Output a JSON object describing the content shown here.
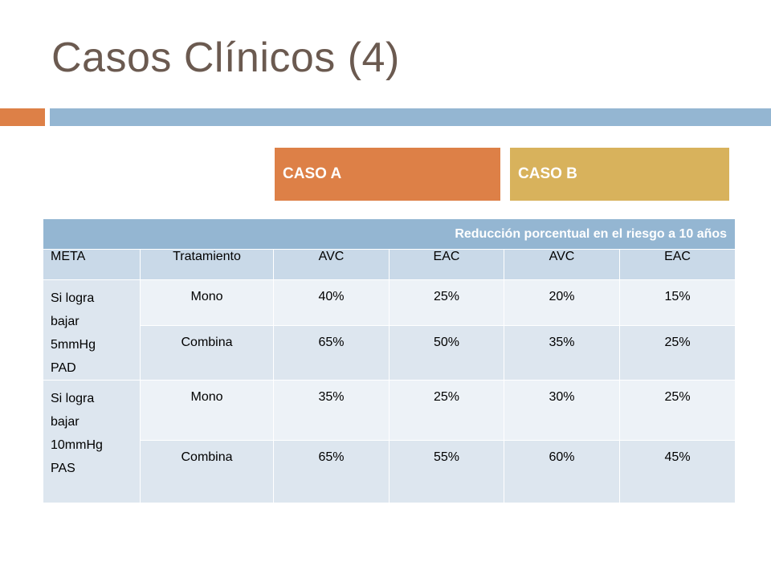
{
  "slide": {
    "title": "Casos Clínicos (4)",
    "colors": {
      "title": "#6b5a50",
      "orange": "#dd8047",
      "blue": "#94b6d2",
      "gold": "#d8b25c"
    }
  },
  "cases": {
    "a_label": "CASO A",
    "b_label": "CASO B"
  },
  "table": {
    "header_caption": "Reducción porcentual en el riesgo a 10 años",
    "columns": [
      "META",
      "Tratamiento",
      "AVC",
      "EAC",
      "AVC",
      "EAC"
    ],
    "groups": [
      {
        "meta_lines": [
          "Si logra",
          "bajar",
          "5mmHg",
          "PAD"
        ],
        "rows": [
          {
            "treatment": "Mono",
            "values": [
              "40%",
              "25%",
              "20%",
              "15%"
            ]
          },
          {
            "treatment": "Combina",
            "values": [
              "65%",
              "50%",
              "35%",
              "25%"
            ]
          }
        ]
      },
      {
        "meta_lines": [
          "Si logra",
          "bajar",
          "10mmHg",
          "PAS"
        ],
        "rows": [
          {
            "treatment": "Mono",
            "values": [
              "35%",
              "25%",
              "30%",
              "25%"
            ]
          },
          {
            "treatment": "Combina",
            "values": [
              "65%",
              "55%",
              "60%",
              "45%"
            ]
          }
        ]
      }
    ]
  }
}
